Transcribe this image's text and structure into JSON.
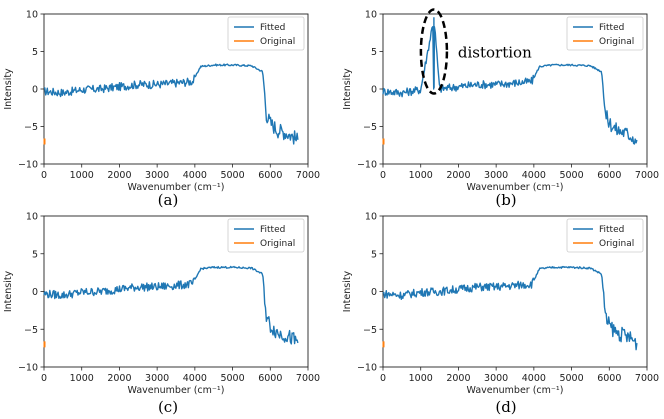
{
  "colors": {
    "fitted": "#1f77b4",
    "original": "#ff7f0e",
    "axis": "#222222"
  },
  "chart_data": [
    {
      "type": "line",
      "panel": "a",
      "caption": "(a)",
      "xlabel": "Wavenumber (cm⁻¹)",
      "ylabel": "Intensity",
      "xlim": [
        0,
        7000
      ],
      "ylim": [
        -10,
        10
      ],
      "xticks": [
        "0",
        "1000",
        "2000",
        "3000",
        "4000",
        "5000",
        "6000",
        "7000"
      ],
      "yticks": [
        "10",
        "5",
        "0",
        "−5",
        "−10"
      ],
      "legend": [
        "Fitted",
        "Original"
      ],
      "legend_position": "top-right",
      "distortion": false,
      "annotation": "",
      "series": [
        {
          "name": "Fitted",
          "x": [
            0,
            500,
            1000,
            1500,
            2000,
            2500,
            3000,
            3500,
            3950,
            4150,
            4500,
            5000,
            5500,
            5800,
            5900,
            6000,
            6200,
            6400,
            6600,
            6750
          ],
          "values": [
            -0.3,
            -0.5,
            -0.1,
            0.0,
            0.3,
            0.6,
            0.6,
            0.8,
            1.0,
            3.0,
            3.2,
            3.2,
            3.1,
            2.3,
            -3.5,
            -4.5,
            -5.5,
            -5.8,
            -6.3,
            -7.0
          ]
        },
        {
          "name": "Original",
          "x": [
            0
          ],
          "values": [
            -7.0
          ]
        }
      ]
    },
    {
      "type": "line",
      "panel": "b",
      "caption": "(b)",
      "xlabel": "Wavenumber (cm⁻¹)",
      "ylabel": "Intensity",
      "xlim": [
        0,
        7000
      ],
      "ylim": [
        -10,
        10
      ],
      "xticks": [
        "0",
        "1000",
        "2000",
        "3000",
        "4000",
        "5000",
        "6000",
        "7000"
      ],
      "yticks": [
        "10",
        "5",
        "0",
        "−5",
        "−10"
      ],
      "legend": [
        "Fitted",
        "Original"
      ],
      "legend_position": "top-right",
      "distortion": true,
      "distortion_x": 1350,
      "annotation": "distortion",
      "series": [
        {
          "name": "Fitted",
          "x": [
            0,
            500,
            1000,
            1350,
            1500,
            2000,
            2500,
            3000,
            3500,
            3950,
            4150,
            4500,
            5000,
            5500,
            5800,
            5900,
            6000,
            6200,
            6400,
            6600,
            6750
          ],
          "values": [
            -0.3,
            -0.5,
            -0.1,
            9.5,
            0.0,
            0.3,
            0.6,
            0.6,
            0.8,
            1.0,
            3.0,
            3.2,
            3.2,
            3.1,
            2.3,
            -3.5,
            -4.5,
            -5.5,
            -5.8,
            -6.3,
            -7.0
          ]
        },
        {
          "name": "Original",
          "x": [
            0
          ],
          "values": [
            -7.0
          ]
        }
      ]
    },
    {
      "type": "line",
      "panel": "c",
      "caption": "(c)",
      "xlabel": "Wavenumber (cm⁻¹)",
      "ylabel": "Intensity",
      "xlim": [
        0,
        7000
      ],
      "ylim": [
        -10,
        10
      ],
      "xticks": [
        "0",
        "1000",
        "2000",
        "3000",
        "4000",
        "5000",
        "6000",
        "7000"
      ],
      "yticks": [
        "10",
        "5",
        "0",
        "−5",
        "−10"
      ],
      "legend": [
        "Fitted",
        "Original"
      ],
      "legend_position": "top-right",
      "distortion": false,
      "annotation": "",
      "series": [
        {
          "name": "Fitted",
          "x": [
            0,
            500,
            1000,
            1500,
            2000,
            2500,
            3000,
            3500,
            3950,
            4150,
            4500,
            5000,
            5500,
            5800,
            5900,
            6000,
            6200,
            6400,
            6600,
            6750
          ],
          "values": [
            -0.3,
            -0.5,
            -0.1,
            0.0,
            0.3,
            0.6,
            0.6,
            0.8,
            1.0,
            3.0,
            3.2,
            3.2,
            3.1,
            2.3,
            -3.5,
            -4.5,
            -5.5,
            -5.8,
            -6.3,
            -7.0
          ]
        },
        {
          "name": "Original",
          "x": [
            0
          ],
          "values": [
            -7.0
          ]
        }
      ]
    },
    {
      "type": "line",
      "panel": "d",
      "caption": "(d)",
      "xlabel": "Wavenumber (cm⁻¹)",
      "ylabel": "Intensity",
      "xlim": [
        0,
        7000
      ],
      "ylim": [
        -10,
        10
      ],
      "xticks": [
        "0",
        "1000",
        "2000",
        "3000",
        "4000",
        "5000",
        "6000",
        "7000"
      ],
      "yticks": [
        "10",
        "5",
        "0",
        "−5",
        "−10"
      ],
      "legend": [
        "Fitted",
        "Original"
      ],
      "legend_position": "top-right",
      "distortion": false,
      "annotation": "",
      "series": [
        {
          "name": "Fitted",
          "x": [
            0,
            500,
            1000,
            1500,
            2000,
            2500,
            3000,
            3500,
            3950,
            4150,
            4500,
            5000,
            5500,
            5800,
            5900,
            6000,
            6200,
            6400,
            6600,
            6750
          ],
          "values": [
            -0.3,
            -0.5,
            -0.1,
            0.0,
            0.3,
            0.6,
            0.6,
            0.8,
            1.0,
            3.0,
            3.2,
            3.2,
            3.1,
            2.3,
            -3.5,
            -4.5,
            -5.5,
            -5.8,
            -6.3,
            -7.0
          ]
        },
        {
          "name": "Original",
          "x": [
            0
          ],
          "values": [
            -7.0
          ]
        }
      ]
    }
  ]
}
